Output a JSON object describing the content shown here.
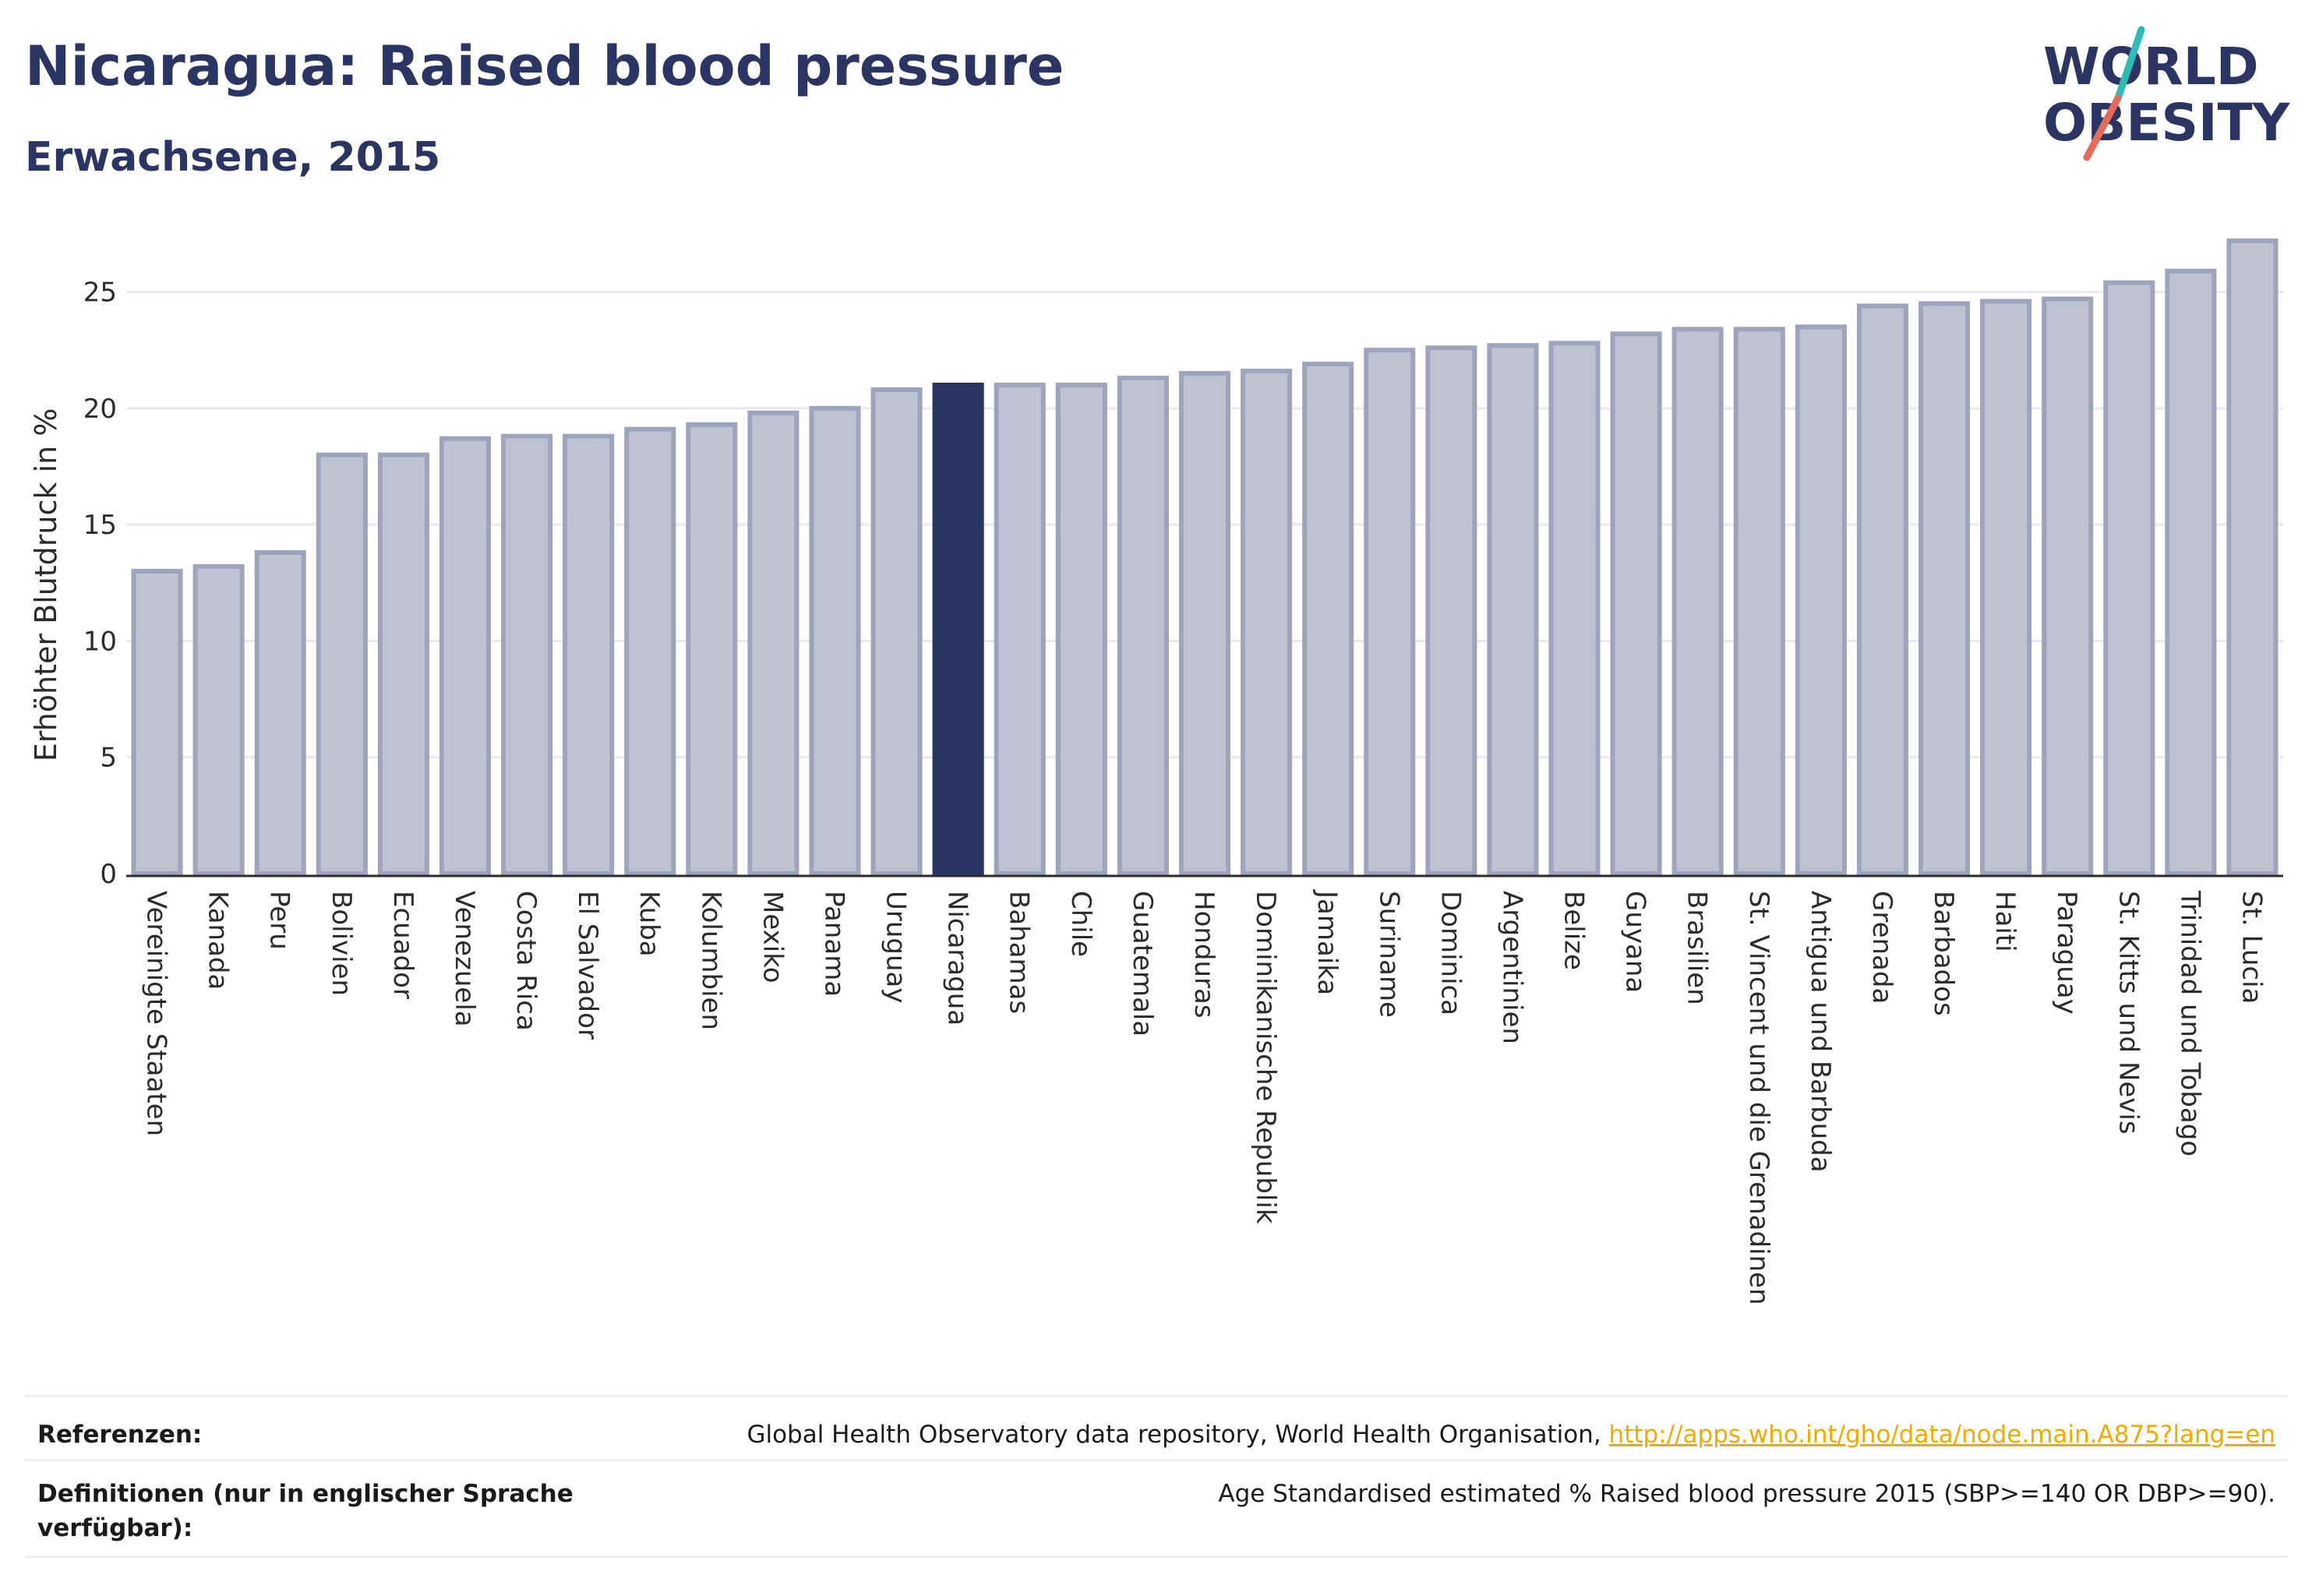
{
  "header": {
    "title": "Nicaragua: Raised blood pressure",
    "subtitle": "Erwachsene, 2015",
    "logo_line1": "WORLD",
    "logo_line2": "OBESITY"
  },
  "colors": {
    "bar_default": "#bfc3d1",
    "bar_default_border": "#9fa4bd",
    "bar_highlight": "#2b3563",
    "grid": "#e8e9ef",
    "logo_text": "#2b3563",
    "logo_teal": "#2dbdb6",
    "logo_coral": "#e86a5a",
    "link": "#f2a900"
  },
  "chart_data": {
    "type": "bar",
    "ylabel": "Erhöhter Blutdruck in %",
    "xlabel": "",
    "ylim": [
      0,
      27.5
    ],
    "yticks": [
      0,
      5,
      10,
      15,
      20,
      25
    ],
    "grid": true,
    "highlight": "Nicaragua",
    "categories": [
      "Vereinigte Staaten",
      "Kanada",
      "Peru",
      "Bolivien",
      "Ecuador",
      "Venezuela",
      "Costa Rica",
      "El Salvador",
      "Kuba",
      "Kolumbien",
      "Mexiko",
      "Panama",
      "Uruguay",
      "Nicaragua",
      "Bahamas",
      "Chile",
      "Guatemala",
      "Honduras",
      "Dominikanische Republik",
      "Jamaika",
      "Suriname",
      "Dominica",
      "Argentinien",
      "Belize",
      "Guyana",
      "Brasilien",
      "St. Vincent und die Grenadinen",
      "Antigua und Barbuda",
      "Grenada",
      "Barbados",
      "Haiti",
      "Paraguay",
      "St. Kitts und Nevis",
      "Trinidad und Tobago",
      "St. Lucia"
    ],
    "values": [
      13.0,
      13.2,
      13.8,
      18.0,
      18.0,
      18.7,
      18.8,
      18.8,
      19.1,
      19.3,
      19.8,
      20.0,
      20.8,
      21.0,
      21.0,
      21.0,
      21.3,
      21.5,
      21.6,
      21.9,
      22.5,
      22.6,
      22.7,
      22.8,
      23.2,
      23.4,
      23.4,
      23.5,
      24.4,
      24.5,
      24.6,
      24.7,
      25.4,
      25.9,
      27.2
    ]
  },
  "footer": {
    "references_label": "Referenzen:",
    "references_text": "Global Health Observatory data repository, World Health Organisation,",
    "references_link": "http://apps.who.int/gho/data/node.main.A875?lang=en",
    "definitions_label": "Definitionen (nur in englischer Sprache verfügbar):",
    "definitions_text": "Age Standardised estimated % Raised blood pressure 2015 (SBP>=140 OR DBP>=90)."
  }
}
